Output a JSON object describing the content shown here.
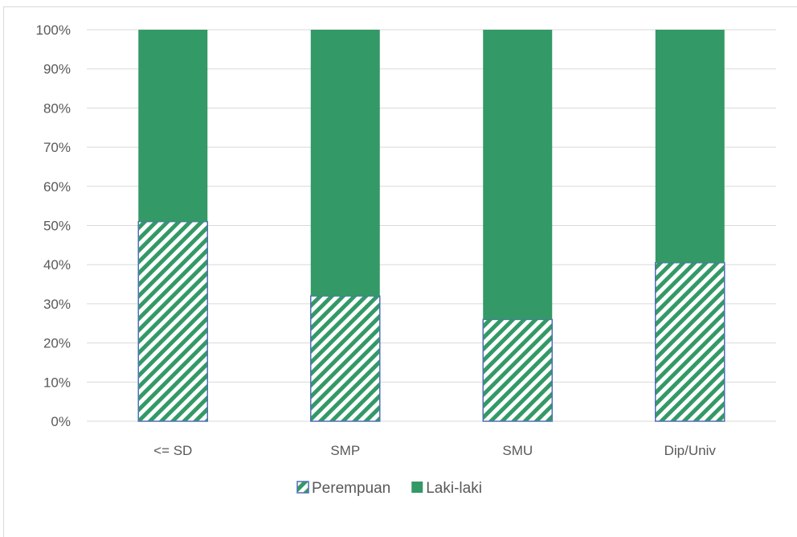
{
  "chart_data": {
    "type": "bar",
    "stacked": true,
    "normalized_percent": true,
    "categories": [
      "<= SD",
      "SMP",
      "SMU",
      "Dip/Univ"
    ],
    "series": [
      {
        "name": "Perempuan",
        "values": [
          51,
          32,
          26,
          40.5
        ],
        "color": "#339966",
        "pattern": "diagonal-hatch"
      },
      {
        "name": "Laki-laki",
        "values": [
          49,
          68,
          74,
          59.5
        ],
        "color": "#339966",
        "pattern": "solid"
      }
    ],
    "y_ticks": [
      "0%",
      "10%",
      "20%",
      "30%",
      "40%",
      "50%",
      "60%",
      "70%",
      "80%",
      "90%",
      "100%"
    ],
    "ylim": [
      0,
      100
    ],
    "grid": true,
    "legend_position": "bottom",
    "title": "",
    "xlabel": "",
    "ylabel": ""
  },
  "colors": {
    "bar": "#339966",
    "bar_outline": "#4f6fb5",
    "grid": "#d9d9d9",
    "text": "#595959"
  }
}
